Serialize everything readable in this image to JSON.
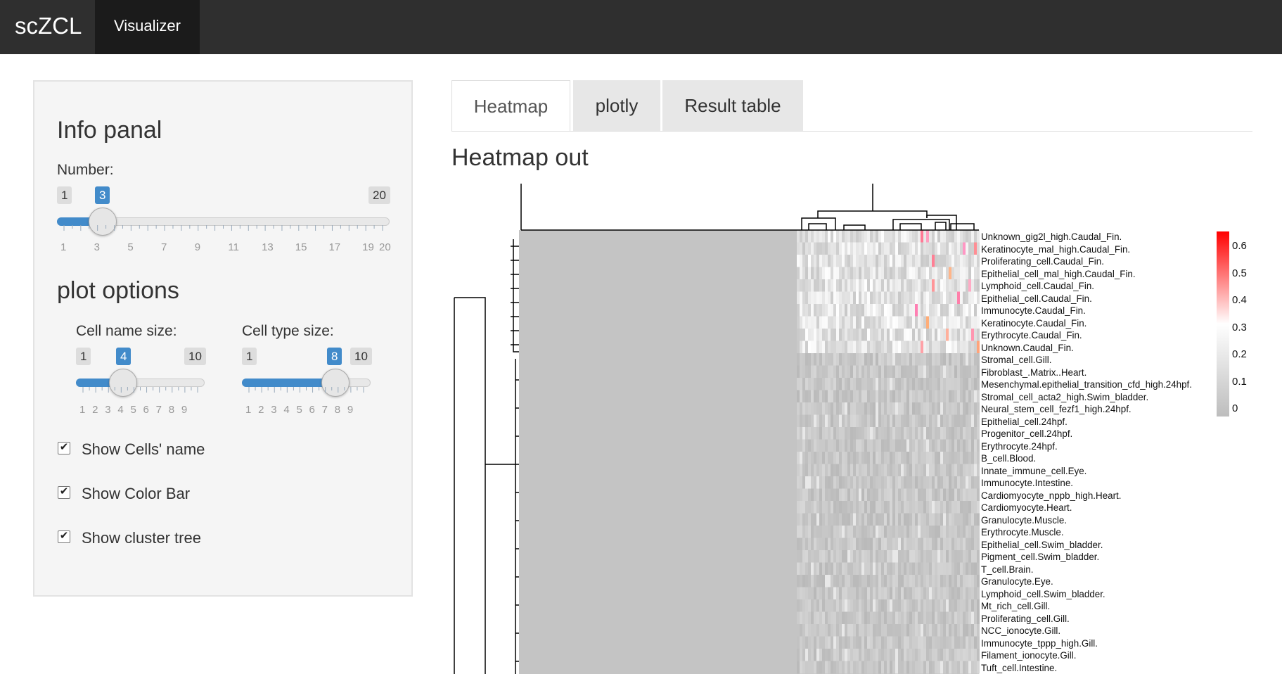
{
  "navbar": {
    "brand": "scZCL",
    "tab": "Visualizer"
  },
  "sidebar": {
    "info_title": "Info panal",
    "number": {
      "label": "Number:",
      "min": "1",
      "max": "20",
      "value": "3",
      "ticks": [
        "1",
        "3",
        "5",
        "7",
        "9",
        "11",
        "13",
        "15",
        "17",
        "19",
        "20"
      ]
    },
    "plot_title": "plot options",
    "cell_name": {
      "label": "Cell name size:",
      "min": "1",
      "max": "10",
      "value": "4",
      "ticks": [
        "1",
        "2",
        "3",
        "4",
        "5",
        "6",
        "7",
        "8",
        "9"
      ]
    },
    "cell_type": {
      "label": "Cell type size:",
      "min": "1",
      "max": "10",
      "value": "8",
      "ticks": [
        "1",
        "2",
        "3",
        "4",
        "5",
        "6",
        "7",
        "8",
        "9"
      ]
    },
    "checkboxes": [
      {
        "label": "Show Cells' name",
        "checked": true
      },
      {
        "label": "Show Color Bar",
        "checked": true
      },
      {
        "label": "Show cluster tree",
        "checked": true
      }
    ]
  },
  "tabs": [
    "Heatmap",
    "plotly",
    "Result table"
  ],
  "active_tab": "Heatmap",
  "section_title": "Heatmap out",
  "heatmap": {
    "rows": [
      "Unknown_gig2l_high.Caudal_Fin.",
      "Keratinocyte_mal_high.Caudal_Fin.",
      "Proliferating_cell.Caudal_Fin.",
      "Epithelial_cell_mal_high.Caudal_Fin.",
      "Lymphoid_cell.Caudal_Fin.",
      "Epithelial_cell.Caudal_Fin.",
      "Immunocyte.Caudal_Fin.",
      "Keratinocyte.Caudal_Fin.",
      "Erythrocyte.Caudal_Fin.",
      "Unknown.Caudal_Fin.",
      "Stromal_cell.Gill.",
      "Fibroblast_.Matrix..Heart.",
      "Mesenchymal.epithelial_transition_cfd_high.24hpf.",
      "Stromal_cell_acta2_high.Swim_bladder.",
      "Neural_stem_cell_fezf1_high.24hpf.",
      "Epithelial_cell.24hpf.",
      "Progenitor_cell.24hpf.",
      "Erythrocyte.24hpf.",
      "B_cell.Blood.",
      "Innate_immune_cell.Eye.",
      "Immunocyte.Intestine.",
      "Cardiomyocyte_nppb_high.Heart.",
      "Cardiomyocyte.Heart.",
      "Granulocyte.Muscle.",
      "Erythrocyte.Muscle.",
      "Epithelial_cell.Swim_bladder.",
      "Pigment_cell.Swim_bladder.",
      "T_cell.Brain.",
      "Granulocyte.Eye.",
      "Lymphoid_cell.Swim_bladder.",
      "Mt_rich_cell.Gill.",
      "Proliferating_cell.Gill.",
      "NCC_ionocyte.Gill.",
      "Immunocyte_tppp_high.Gill.",
      "Filament_ionocyte.Gill.",
      "Tuft_cell.Intestine."
    ],
    "colorbar_ticks": [
      "0.6",
      "0.5",
      "0.4",
      "0.3",
      "0.2",
      "0.1",
      "0"
    ],
    "colors": {
      "low": "#bdbdbd",
      "mid": "#ffffff",
      "high": "#ff0000"
    }
  }
}
